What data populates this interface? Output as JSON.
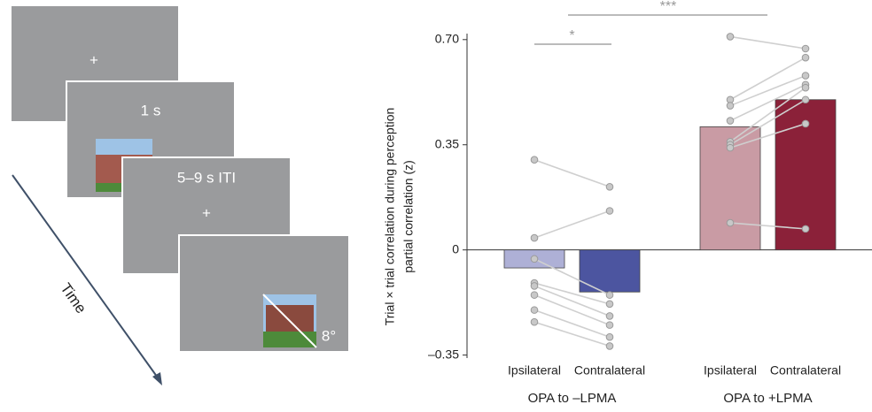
{
  "diagram": {
    "fixation": "+",
    "stimulus_duration": "1 s",
    "iti": "5–9 s ITI",
    "eccentricity": "8°",
    "time_axis": "Time"
  },
  "chart_data": {
    "type": "bar",
    "y_label": [
      "Trial × trial correlation during perception",
      "partial correlation  (z)"
    ],
    "categories": [
      "Ipsilateral",
      "Contralateral",
      "Ipsilateral",
      "Contralateral"
    ],
    "groups": [
      "OPA to –LPMA",
      "OPA to +LPMA"
    ],
    "values": [
      -0.06,
      -0.14,
      0.41,
      0.5
    ],
    "colors": [
      "#aeb0d6",
      "#4c55a0",
      "#c99ba4",
      "#8b2139"
    ],
    "points": [
      [
        0.3,
        0.04,
        -0.03,
        -0.11,
        -0.12,
        -0.15,
        -0.2,
        -0.24
      ],
      [
        0.21,
        0.13,
        -0.15,
        -0.18,
        -0.22,
        -0.25,
        -0.29,
        -0.32
      ],
      [
        0.71,
        0.5,
        0.48,
        0.43,
        0.36,
        0.35,
        0.34,
        0.09
      ],
      [
        0.67,
        0.64,
        0.58,
        0.55,
        0.54,
        0.5,
        0.42,
        0.07
      ]
    ],
    "annotations": [
      "*",
      "***"
    ],
    "ylim": [
      -0.36,
      0.72
    ],
    "yticks": [
      {
        "value": -0.35,
        "label": "–0.35"
      },
      0,
      0.35,
      {
        "value": 0.7,
        "label": "0.70"
      }
    ]
  }
}
